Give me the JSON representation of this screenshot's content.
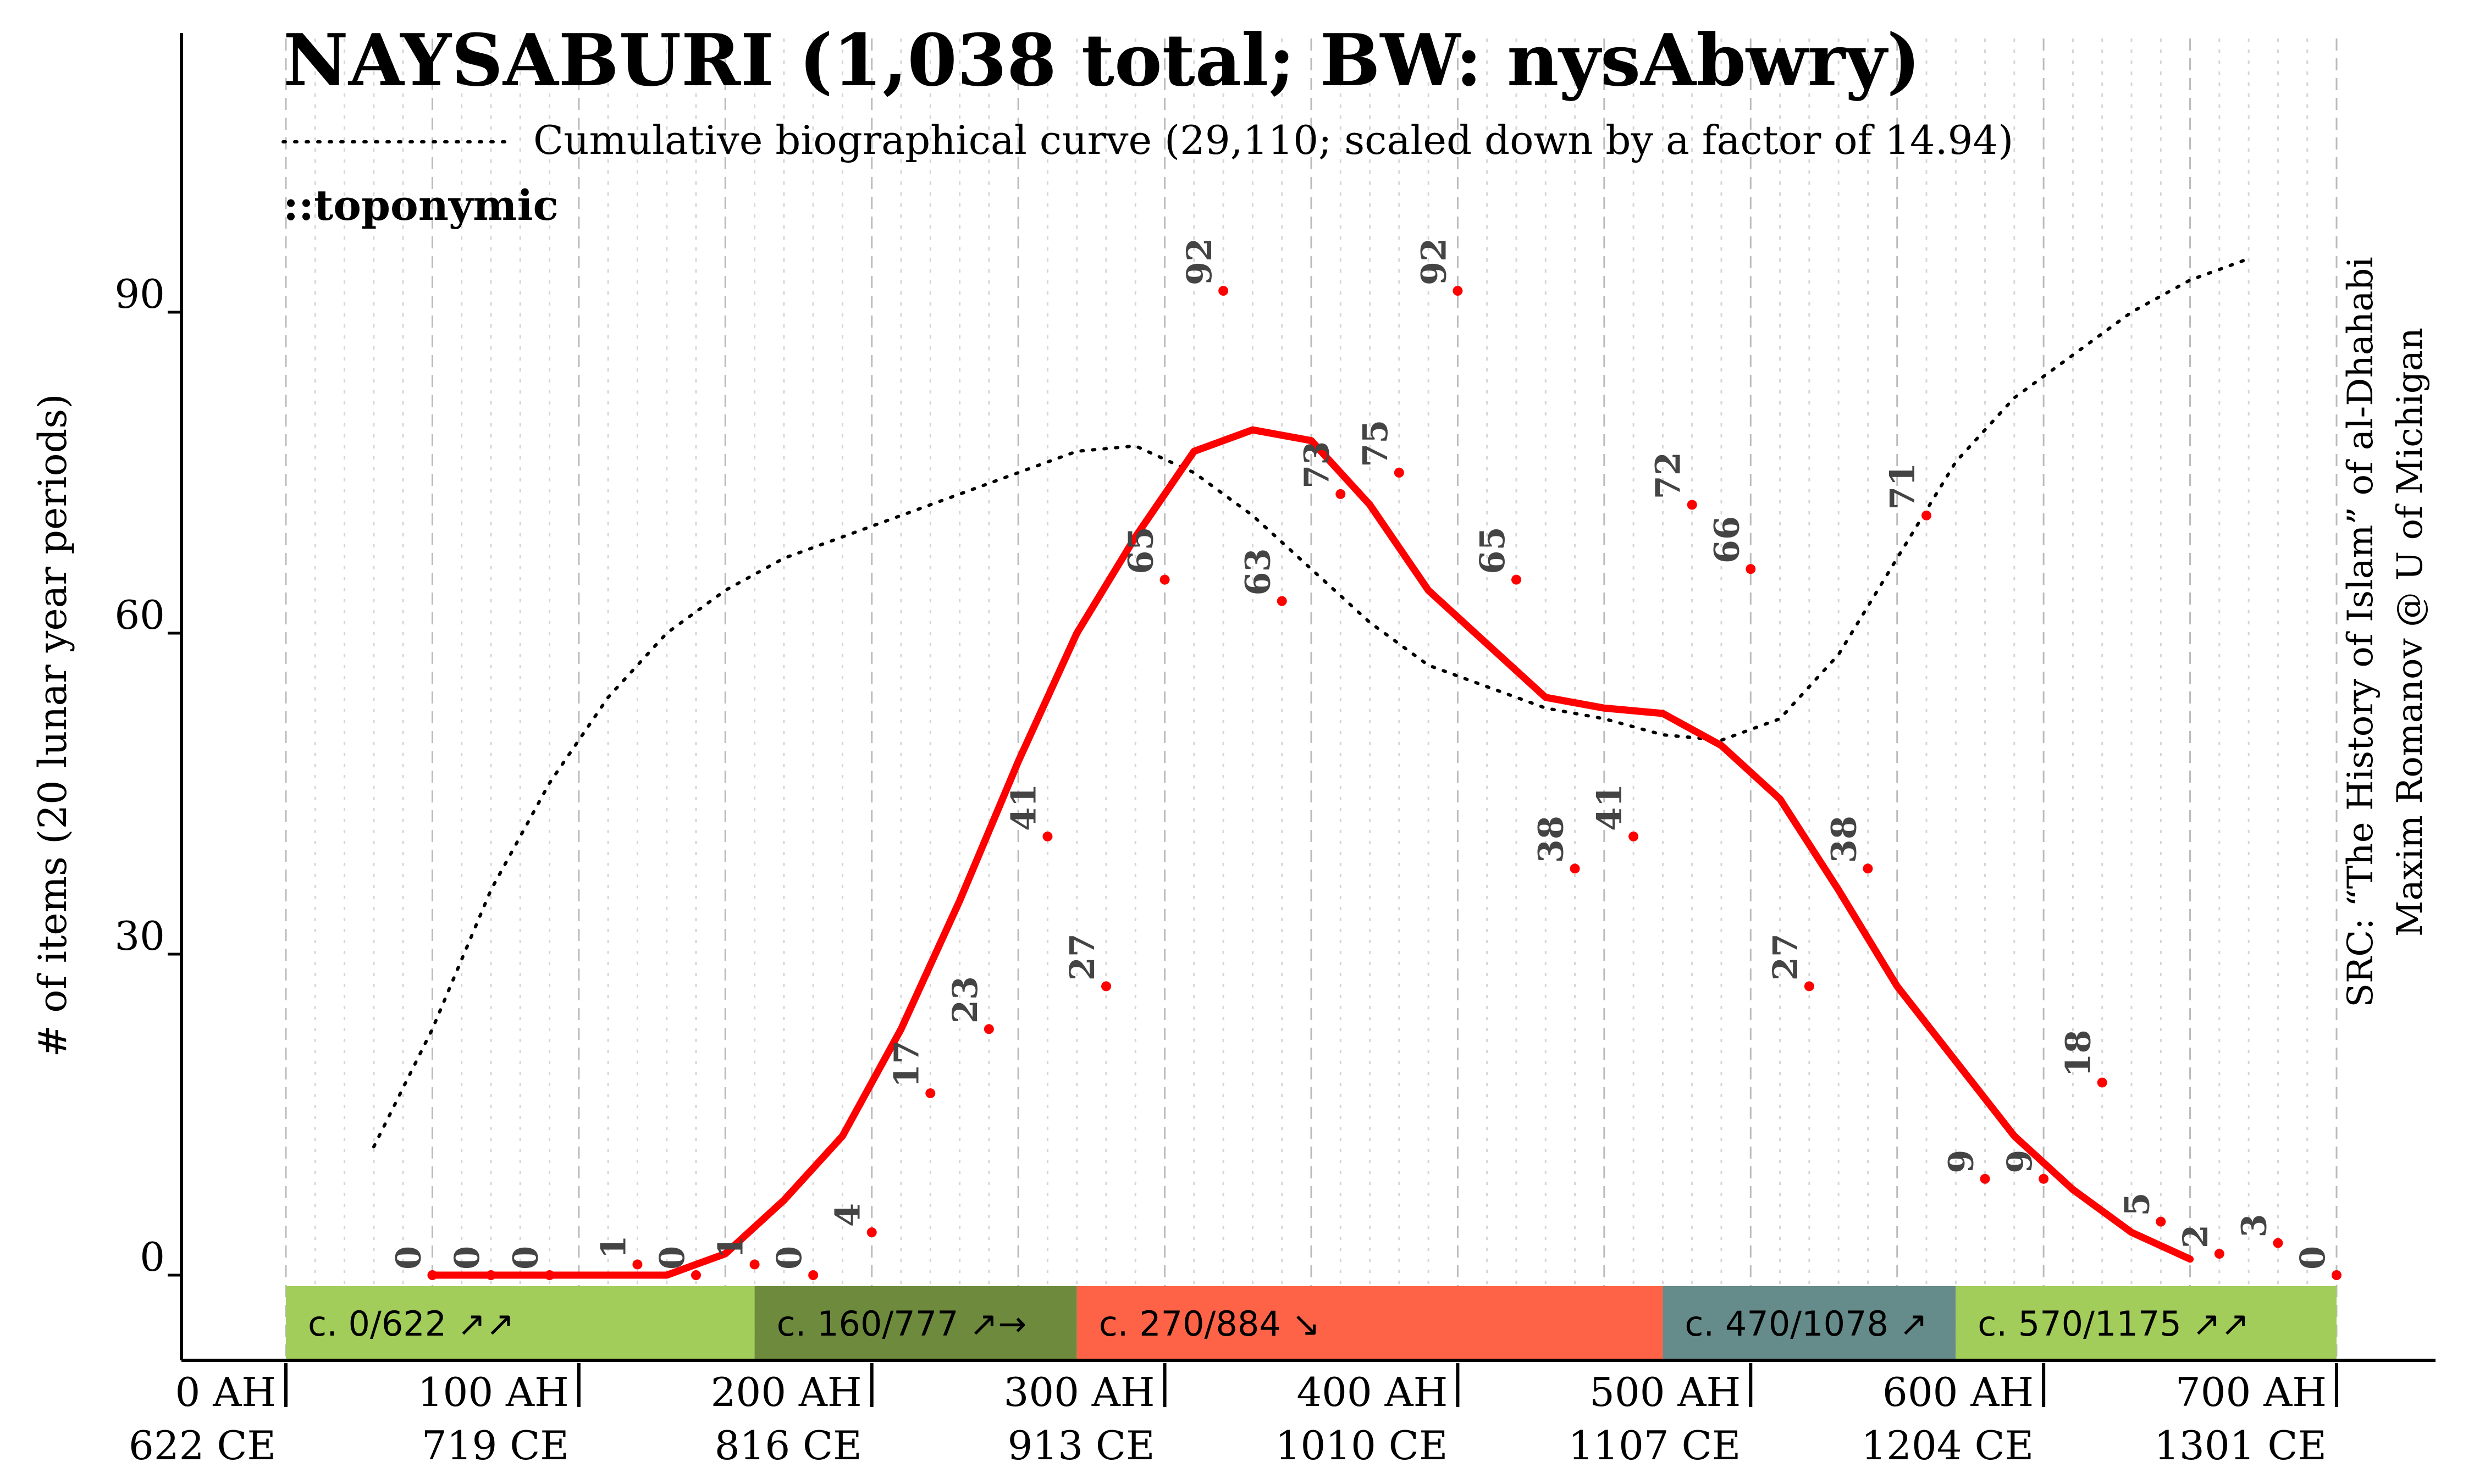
{
  "chart_data": {
    "type": "line",
    "title": "NAYSABURI (1,038 total; BW: nysAbwry)",
    "legend": "Cumulative biographical curve (29,110; scaled down by a factor of 14.94)",
    "subtitle": "::toponymic",
    "ylabel": "# of items (20 lunar year periods)",
    "source_line1": "SRC: “The History of Islam” of al-Dhahabi",
    "source_line2": "Maxim Romanov @ U of Michigan",
    "xlim": [
      0,
      700
    ],
    "ylim": [
      0,
      90
    ],
    "y_ticks": [
      0,
      30,
      60,
      90
    ],
    "x_ticks": [
      {
        "ah": 0,
        "ah_label": "0 AH",
        "ce_label": "622 CE"
      },
      {
        "ah": 100,
        "ah_label": "100 AH",
        "ce_label": "719 CE"
      },
      {
        "ah": 200,
        "ah_label": "200 AH",
        "ce_label": "816 CE"
      },
      {
        "ah": 300,
        "ah_label": "300 AH",
        "ce_label": "913 CE"
      },
      {
        "ah": 400,
        "ah_label": "400 AH",
        "ce_label": "1010 CE"
      },
      {
        "ah": 500,
        "ah_label": "500 AH",
        "ce_label": "1107 CE"
      },
      {
        "ah": 600,
        "ah_label": "600 AH",
        "ce_label": "1204 CE"
      },
      {
        "ah": 700,
        "ah_label": "700 AH",
        "ce_label": "1301 CE"
      }
    ],
    "points": [
      {
        "x": 50,
        "y": 0,
        "label": "0"
      },
      {
        "x": 70,
        "y": 0,
        "label": "0"
      },
      {
        "x": 90,
        "y": 0,
        "label": "0"
      },
      {
        "x": 120,
        "y": 1,
        "label": "1"
      },
      {
        "x": 140,
        "y": 0,
        "label": "0"
      },
      {
        "x": 160,
        "y": 1,
        "label": "1"
      },
      {
        "x": 180,
        "y": 0,
        "label": "0"
      },
      {
        "x": 200,
        "y": 4,
        "label": "4"
      },
      {
        "x": 220,
        "y": 17,
        "label": "17"
      },
      {
        "x": 240,
        "y": 23,
        "label": "23"
      },
      {
        "x": 260,
        "y": 41,
        "label": "41"
      },
      {
        "x": 280,
        "y": 27,
        "label": "27"
      },
      {
        "x": 300,
        "y": 65,
        "label": "65"
      },
      {
        "x": 320,
        "y": 92,
        "label": "92"
      },
      {
        "x": 340,
        "y": 63,
        "label": "63"
      },
      {
        "x": 360,
        "y": 73,
        "label": "73"
      },
      {
        "x": 380,
        "y": 75,
        "label": "75"
      },
      {
        "x": 400,
        "y": 92,
        "label": "92"
      },
      {
        "x": 420,
        "y": 65,
        "label": "65"
      },
      {
        "x": 440,
        "y": 38,
        "label": "38"
      },
      {
        "x": 460,
        "y": 41,
        "label": "41"
      },
      {
        "x": 480,
        "y": 72,
        "label": "72"
      },
      {
        "x": 500,
        "y": 66,
        "label": "66"
      },
      {
        "x": 520,
        "y": 27,
        "label": "27"
      },
      {
        "x": 540,
        "y": 38,
        "label": "38"
      },
      {
        "x": 560,
        "y": 71,
        "label": "71"
      },
      {
        "x": 580,
        "y": 9,
        "label": "9"
      },
      {
        "x": 600,
        "y": 9,
        "label": "9"
      },
      {
        "x": 620,
        "y": 18,
        "label": "18"
      },
      {
        "x": 640,
        "y": 5,
        "label": "5"
      },
      {
        "x": 660,
        "y": 2,
        "label": "2"
      },
      {
        "x": 680,
        "y": 3,
        "label": "3"
      },
      {
        "x": 700,
        "y": 0,
        "label": "0"
      }
    ],
    "trend": {
      "x": [
        50,
        70,
        90,
        110,
        130,
        150,
        170,
        190,
        210,
        230,
        250,
        270,
        290,
        310,
        330,
        350,
        370,
        390,
        410,
        430,
        450,
        470,
        490,
        510,
        530,
        550,
        570,
        590,
        610,
        630,
        650
      ],
      "y": [
        0,
        0,
        0,
        0,
        0,
        2,
        7,
        13,
        23,
        35,
        48,
        60,
        69,
        77,
        79,
        78,
        72,
        64,
        59,
        54,
        53,
        52.5,
        49.5,
        44.5,
        36,
        27,
        20,
        13,
        8,
        4,
        1.5
      ]
    },
    "cumulative": {
      "x": [
        30,
        50,
        70,
        90,
        110,
        130,
        150,
        170,
        190,
        210,
        230,
        250,
        270,
        290,
        310,
        330,
        350,
        370,
        390,
        410,
        430,
        450,
        470,
        490,
        510,
        530,
        550,
        570,
        590,
        610,
        630,
        650,
        670
      ],
      "y": [
        12,
        23,
        36,
        46,
        54,
        60,
        64,
        67,
        69,
        71,
        73,
        75,
        77,
        77.5,
        75,
        71,
        66,
        61,
        57,
        55,
        53,
        52,
        50.5,
        50,
        52,
        58,
        67,
        76,
        82,
        86,
        90,
        93,
        95
      ]
    },
    "periods": [
      {
        "label": "c. 0/622 ↗↗",
        "start": 0,
        "end": 160,
        "color": "#a2cd5a"
      },
      {
        "label": "c. 160/777 ↗→",
        "start": 160,
        "end": 270,
        "color": "#6e8b3d"
      },
      {
        "label": "c. 270/884 ↘",
        "start": 270,
        "end": 470,
        "color": "#ff6347"
      },
      {
        "label": "c. 470/1078 ↗",
        "start": 470,
        "end": 570,
        "color": "#668b8b"
      },
      {
        "label": "c. 570/1175 ↗↗",
        "start": 570,
        "end": 700,
        "color": "#a2cd5a"
      }
    ],
    "colors": {
      "trend": "#ff0000",
      "points": "#ff0000",
      "labels": "#444444",
      "grid": "#bbbbbb"
    },
    "grid": true
  }
}
